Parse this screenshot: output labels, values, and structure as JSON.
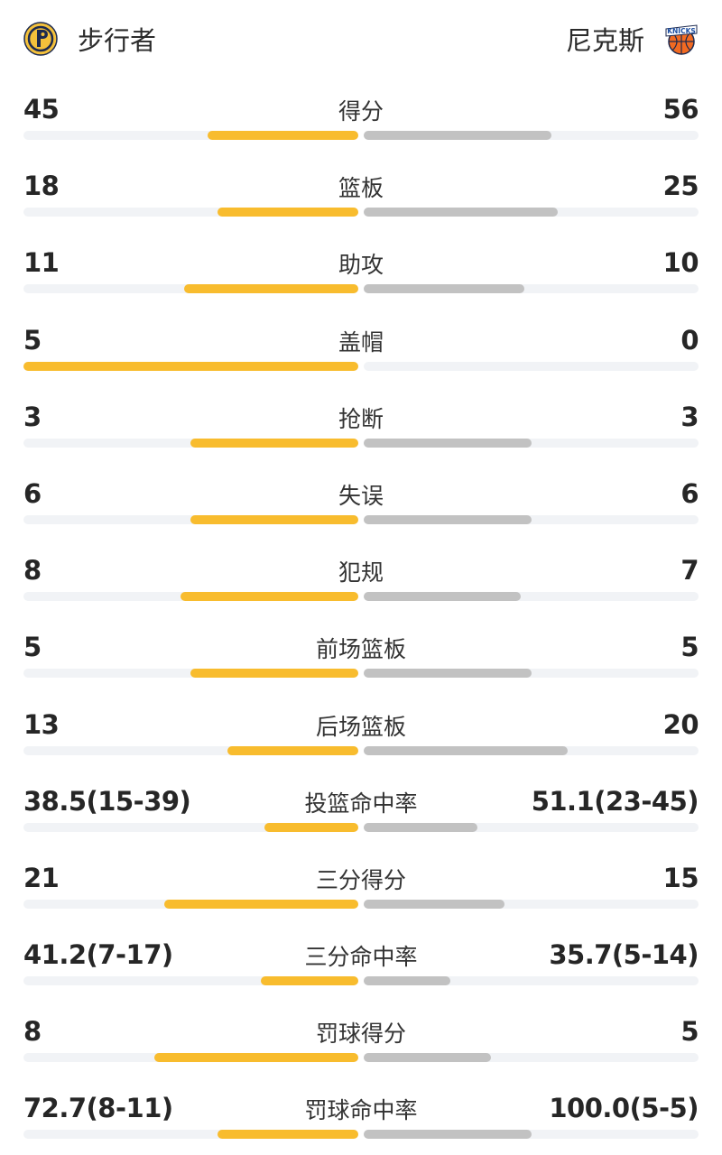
{
  "header": {
    "home_team": "步行者",
    "away_team": "尼克斯",
    "home_logo_icon": "pacers-logo-icon",
    "away_logo_icon": "knicks-logo-icon",
    "away_logo_text": "KNICKS"
  },
  "colors": {
    "home_bar": "#f8bc2e",
    "away_bar": "#c2c2c2",
    "track": "#f1f3f6"
  },
  "stats": [
    {
      "label": "得分",
      "home": "45",
      "away": "56",
      "home_share": 0.45,
      "away_share": 0.56
    },
    {
      "label": "篮板",
      "home": "18",
      "away": "25",
      "home_share": 0.42,
      "away_share": 0.58
    },
    {
      "label": "助攻",
      "home": "11",
      "away": "10",
      "home_share": 0.52,
      "away_share": 0.48
    },
    {
      "label": "盖帽",
      "home": "5",
      "away": "0",
      "home_share": 1.0,
      "away_share": 0.0
    },
    {
      "label": "抢断",
      "home": "3",
      "away": "3",
      "home_share": 0.5,
      "away_share": 0.5
    },
    {
      "label": "失误",
      "home": "6",
      "away": "6",
      "home_share": 0.5,
      "away_share": 0.5
    },
    {
      "label": "犯规",
      "home": "8",
      "away": "7",
      "home_share": 0.53,
      "away_share": 0.47
    },
    {
      "label": "前场篮板",
      "home": "5",
      "away": "5",
      "home_share": 0.5,
      "away_share": 0.5
    },
    {
      "label": "后场篮板",
      "home": "13",
      "away": "20",
      "home_share": 0.39,
      "away_share": 0.61
    },
    {
      "label": "投篮命中率",
      "home": "38.5(15-39)",
      "away": "51.1(23-45)",
      "home_share": 0.28,
      "away_share": 0.34
    },
    {
      "label": "三分得分",
      "home": "21",
      "away": "15",
      "home_share": 0.58,
      "away_share": 0.42
    },
    {
      "label": "三分命中率",
      "home": "41.2(7-17)",
      "away": "35.7(5-14)",
      "home_share": 0.29,
      "away_share": 0.26
    },
    {
      "label": "罚球得分",
      "home": "8",
      "away": "5",
      "home_share": 0.61,
      "away_share": 0.38
    },
    {
      "label": "罚球命中率",
      "home": "72.7(8-11)",
      "away": "100.0(5-5)",
      "home_share": 0.42,
      "away_share": 0.5
    }
  ]
}
